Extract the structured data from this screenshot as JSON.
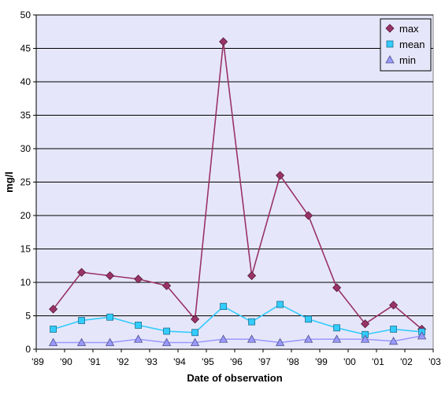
{
  "chart_data": {
    "type": "line",
    "xlabel": "Date of observation",
    "ylabel": "mg/l",
    "x_tick_labels": [
      "'89",
      "'90",
      "'91",
      "'92",
      "'93",
      "'94",
      "'95",
      "'96",
      "'97",
      "'98",
      "'99",
      "'00",
      "'01",
      "'02",
      "'03"
    ],
    "y_tick_labels": [
      "0",
      "5",
      "10",
      "15",
      "20",
      "25",
      "30",
      "35",
      "40",
      "45",
      "50"
    ],
    "ylim": [
      0,
      50
    ],
    "x_range": [
      1989,
      2003
    ],
    "grid": "horizontal",
    "legend_position": "top-right",
    "x": [
      1989.6,
      1990.6,
      1991.6,
      1992.6,
      1993.6,
      1994.6,
      1995.6,
      1996.6,
      1997.6,
      1998.6,
      1999.6,
      2000.6,
      2001.6,
      2002.6
    ],
    "series": [
      {
        "name": "max",
        "color": "#993366",
        "marker": "diamond",
        "values": [
          6.0,
          11.5,
          11.0,
          10.5,
          9.5,
          4.5,
          46.0,
          11.0,
          26.0,
          20.0,
          9.2,
          3.8,
          6.6,
          3.0
        ]
      },
      {
        "name": "mean",
        "color": "#33ccff",
        "marker": "square",
        "values": [
          3.0,
          4.3,
          4.8,
          3.6,
          2.7,
          2.5,
          6.4,
          4.1,
          6.7,
          4.5,
          3.2,
          2.2,
          3.0,
          2.6
        ]
      },
      {
        "name": "min",
        "color": "#9999ff",
        "marker": "triangle",
        "values": [
          1.0,
          1.0,
          1.0,
          1.5,
          1.0,
          1.0,
          1.5,
          1.5,
          1.0,
          1.5,
          1.5,
          1.5,
          1.2,
          2.0
        ]
      }
    ]
  }
}
